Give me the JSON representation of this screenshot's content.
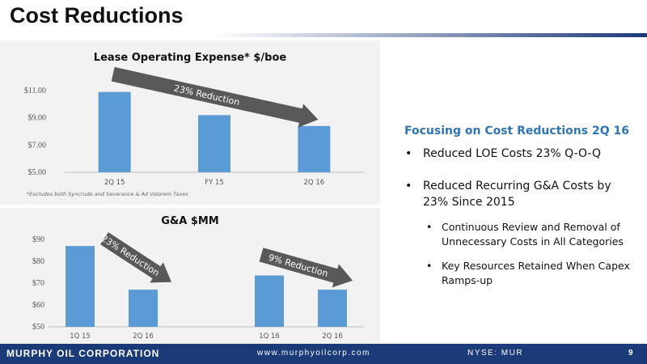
{
  "slide": {
    "title": "Cost Reductions",
    "footer_company": "MURPHY OIL CORPORATION",
    "footer_website": "www.murphyoilcorp.com",
    "footer_ticker": "NYSE: MUR",
    "page_number": "9"
  },
  "right_panel": {
    "heading": "Focusing on Cost Reductions 2Q 16",
    "bullets": [
      {
        "text": "Reduced LOE Costs 23% Q-O-Q",
        "level": 1
      },
      {
        "text": "Reduced Recurring G&A Costs by 23% Since 2015",
        "level": 1
      },
      {
        "text": "Continuous Review and Removal of Unnecessary Costs in All Categories",
        "level": 2
      },
      {
        "text": "Key Resources Retained When Capex Ramps-up",
        "level": 2
      }
    ],
    "bullet_glyph": "•"
  },
  "chart_data": [
    {
      "type": "bar",
      "title": "Lease Operating Expense*  $/boe",
      "categories": [
        "2Q 15",
        "FY 15",
        "2Q 16"
      ],
      "values": [
        10.9,
        9.2,
        8.4
      ],
      "ylim": [
        5,
        11
      ],
      "yticks": [
        5,
        7,
        9,
        11
      ],
      "ytick_labels": [
        "$5.00",
        "$7.00",
        "$9.00",
        "$11.00"
      ],
      "bar_color": "#5b9bd5",
      "grid": false,
      "annotations": [
        {
          "text": "23% Reduction",
          "from": "2Q 15",
          "to": "2Q 16"
        }
      ],
      "footnote": "*Excludes both Syncrude and Severance & Ad Valorem Taxes"
    },
    {
      "type": "bar",
      "title": "G&A $MM",
      "categories": [
        "1Q 15",
        "2Q 16",
        "1Q 16",
        "2Q 16"
      ],
      "category_gap_after": 1,
      "values": [
        87,
        67,
        73.5,
        67
      ],
      "ylim": [
        50,
        90
      ],
      "yticks": [
        50,
        60,
        70,
        80,
        90
      ],
      "ytick_labels": [
        "$50",
        "$60",
        "$70",
        "$80",
        "$90"
      ],
      "bar_color": "#5b9bd5",
      "grid": false,
      "annotations": [
        {
          "text": "23% Reduction",
          "from": "1Q 15",
          "to": "2Q 16"
        },
        {
          "text": "9% Reduction",
          "from": "1Q 16",
          "to": "2Q 16"
        }
      ]
    }
  ]
}
